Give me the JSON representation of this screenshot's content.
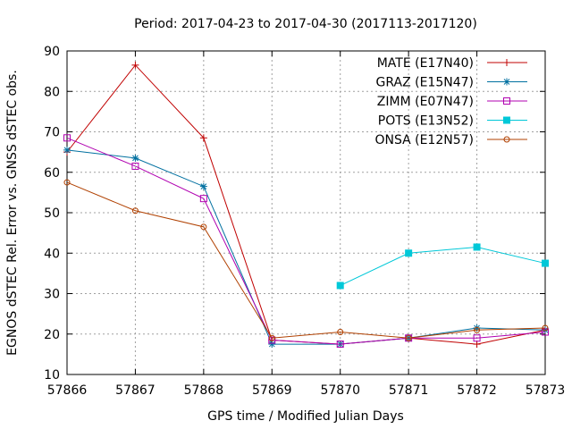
{
  "chart_data": {
    "type": "line",
    "title": "Period: 2017-04-23 to 2017-04-30 (2017113-2017120)",
    "xlabel": "GPS time / Modified Julian Days",
    "ylabel": "EGNOS dSTEC Rel. Error vs. GNSS dSTEC obs.",
    "xlim": [
      57866,
      57873
    ],
    "ylim": [
      10,
      90
    ],
    "xticks": [
      "57866",
      "57867",
      "57868",
      "57869",
      "57870",
      "57871",
      "57872",
      "57873"
    ],
    "yticks": [
      "10",
      "20",
      "30",
      "40",
      "50",
      "60",
      "70",
      "80",
      "90"
    ],
    "grid": true,
    "legend_position": "top-right",
    "x": [
      57866,
      57867,
      57868,
      57869,
      57870,
      57871,
      57872,
      57873
    ],
    "series": [
      {
        "name": "MATE (E17N40)",
        "color": "#c00000",
        "marker": "plus",
        "values": [
          65,
          86.5,
          68.5,
          18.5,
          17.5,
          19,
          17.5,
          21
        ]
      },
      {
        "name": "GRAZ (E15N47)",
        "color": "#0070a0",
        "marker": "star",
        "values": [
          65.5,
          63.5,
          56.5,
          17.5,
          17.5,
          19,
          21.5,
          21
        ]
      },
      {
        "name": "ZIMM (E07N47)",
        "color": "#b000b0",
        "marker": "box",
        "values": [
          68.5,
          61.5,
          53.5,
          18.5,
          17.5,
          19,
          19,
          20.5
        ]
      },
      {
        "name": "POTS (E13N52)",
        "color": "#00c8d8",
        "marker": "filledbox",
        "values": [
          null,
          null,
          null,
          null,
          32,
          40,
          41.5,
          37.5
        ]
      },
      {
        "name": "ONSA (E12N57)",
        "color": "#b04000",
        "marker": "circle",
        "values": [
          57.5,
          50.5,
          46.5,
          19,
          20.5,
          19,
          21,
          21.5
        ]
      }
    ]
  }
}
